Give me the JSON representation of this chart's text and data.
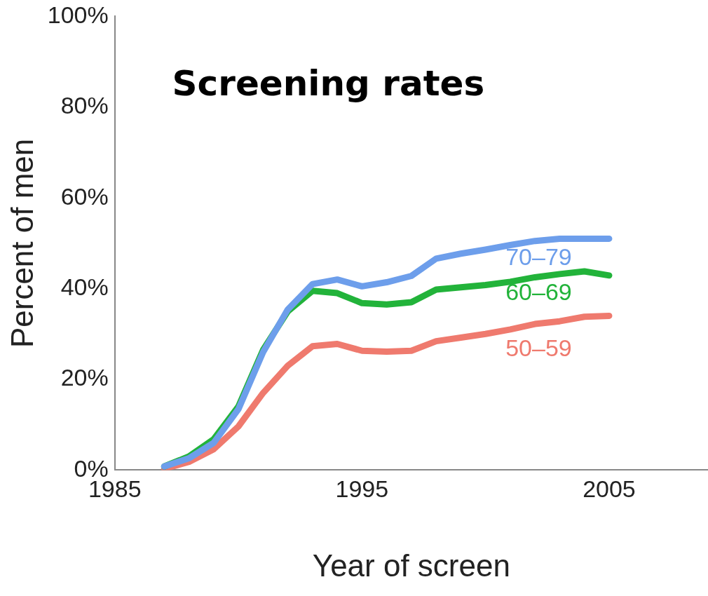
{
  "chart_data": {
    "type": "line",
    "title": "Screening rates",
    "xlabel": "Year of screen",
    "ylabel": "Percent of men",
    "x": [
      1987,
      1988,
      1989,
      1990,
      1991,
      1992,
      1993,
      1994,
      1995,
      1996,
      1997,
      1998,
      1999,
      2000,
      2001,
      2002,
      2003,
      2004,
      2005
    ],
    "series": [
      {
        "name": "70–79",
        "color": "#6d9eeb",
        "values": [
          0.8,
          2.6,
          6,
          13.4,
          26,
          35.4,
          41,
          42,
          40.5,
          41.4,
          42.8,
          46.6,
          47.7,
          48.6,
          49.6,
          50.5,
          51,
          51,
          51
        ]
      },
      {
        "name": "60–69",
        "color": "#22b33a",
        "values": [
          0.8,
          3,
          6.8,
          14,
          26.5,
          35,
          39.5,
          39,
          36.8,
          36.5,
          37,
          39.8,
          40.3,
          40.8,
          41.5,
          42.5,
          43.2,
          43.8,
          42.9
        ]
      },
      {
        "name": "50–59",
        "color": "#ef7a6e",
        "values": [
          0.3,
          1.8,
          4.6,
          9.6,
          17,
          23,
          27.3,
          27.8,
          26.3,
          26.1,
          26.3,
          28.4,
          29.2,
          30,
          31,
          32.2,
          32.8,
          33.8,
          34
        ]
      }
    ],
    "xlim": [
      1985,
      2009
    ],
    "xticks": [
      1985,
      1995,
      2005
    ],
    "ylim": [
      0,
      100
    ],
    "yticks": [
      {
        "value": 0,
        "label": "0%"
      },
      {
        "value": 20,
        "label": "20%"
      },
      {
        "value": 40,
        "label": "40%"
      },
      {
        "value": 60,
        "label": "60%"
      },
      {
        "value": 80,
        "label": "80%"
      },
      {
        "value": 100,
        "label": "100%"
      }
    ],
    "grid": false,
    "legend": false,
    "marker": "none",
    "line_style": "solid"
  }
}
